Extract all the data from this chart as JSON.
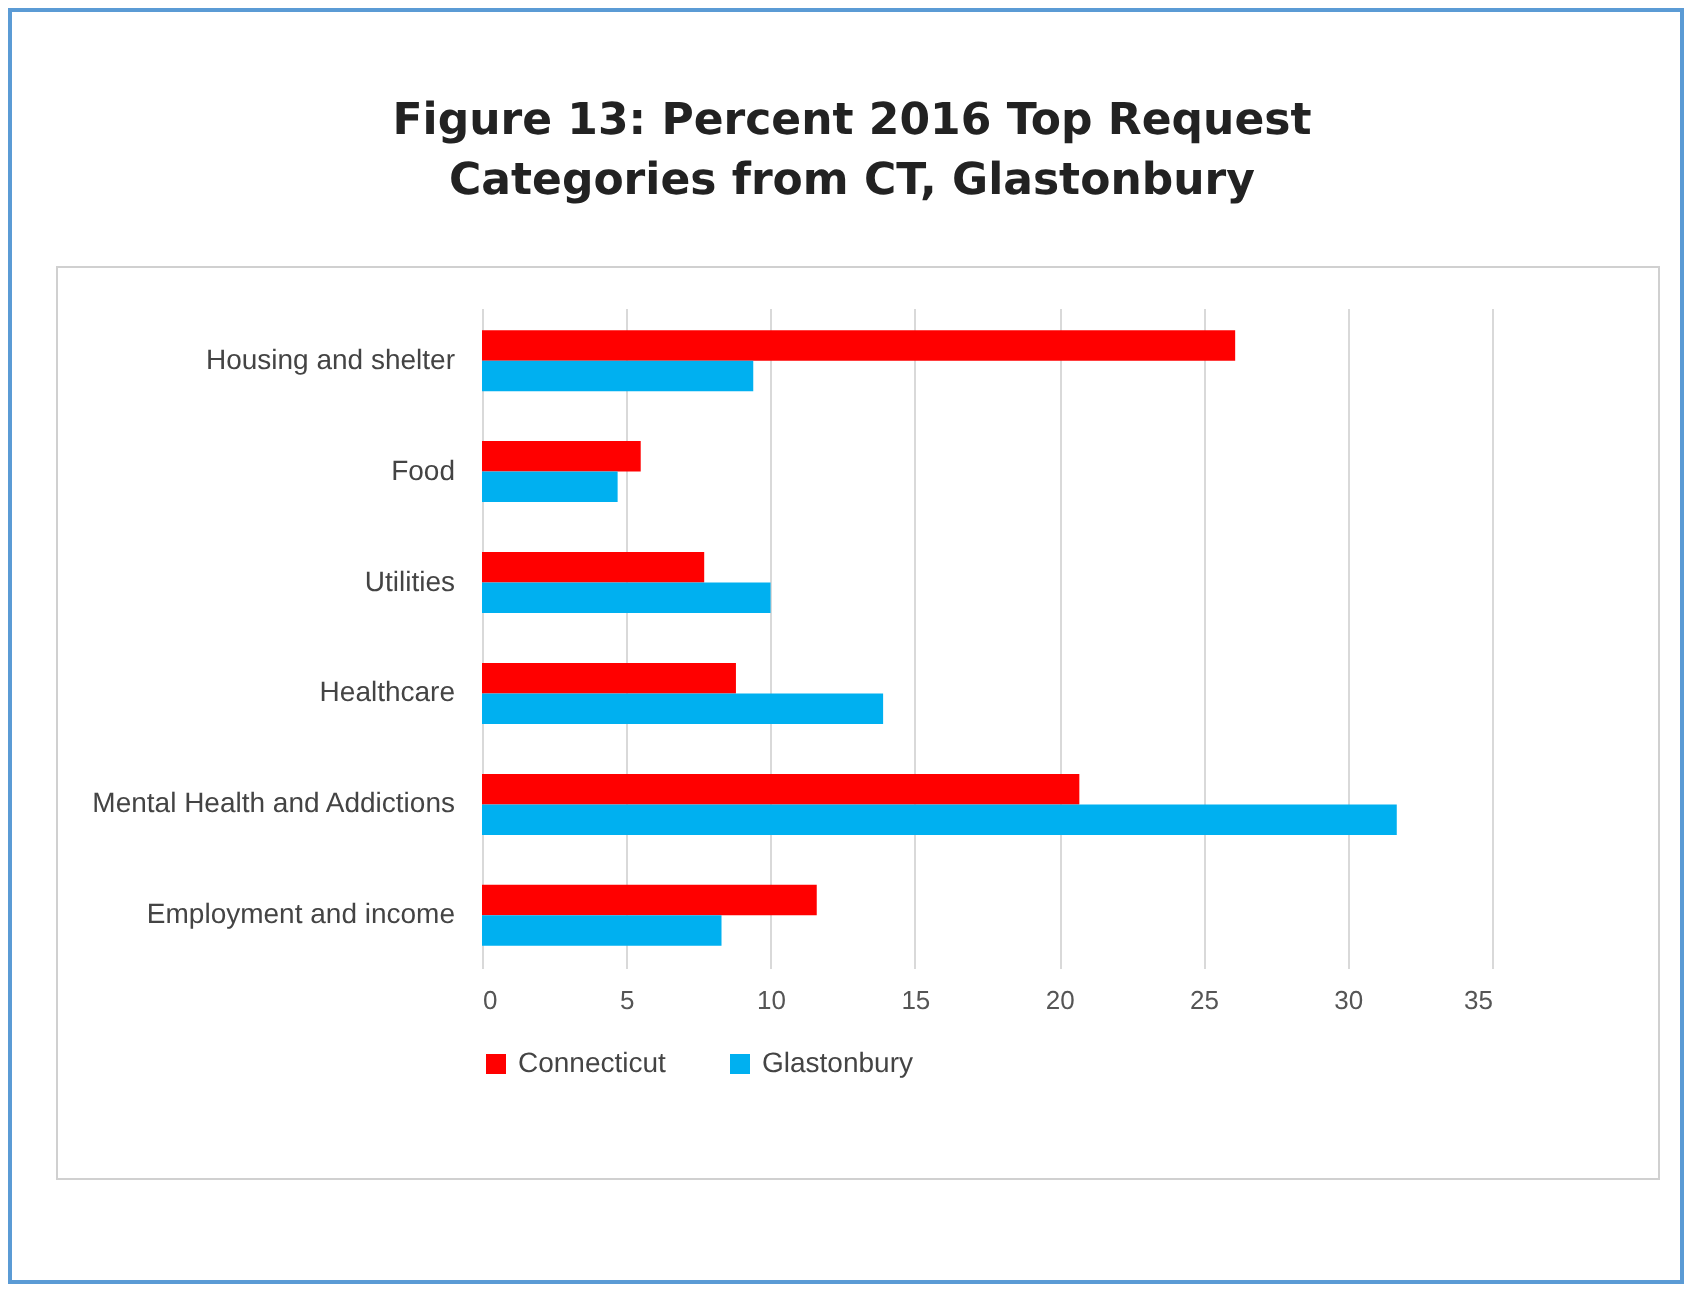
{
  "chart_data": {
    "type": "bar",
    "orientation": "horizontal",
    "title": "Figure 13: Percent 2016 Top Request Categories from CT, Glastonbury",
    "categories": [
      "Housing and shelter",
      "Food",
      "Utilities",
      "Healthcare",
      "Mental Health and Addictions",
      "Employment and income"
    ],
    "series": [
      {
        "name": "Connecticut",
        "color": "#ff0000",
        "values": [
          26.1,
          5.5,
          7.7,
          8.8,
          20.7,
          11.6
        ]
      },
      {
        "name": "Glastonbury",
        "color": "#00b0f0",
        "values": [
          9.4,
          4.7,
          10.0,
          13.9,
          31.7,
          8.3
        ]
      }
    ],
    "xlim": [
      0,
      35
    ],
    "xticks": [
      0,
      5,
      10,
      15,
      20,
      25,
      30,
      35
    ],
    "grid": "x",
    "legend": "bottom"
  }
}
